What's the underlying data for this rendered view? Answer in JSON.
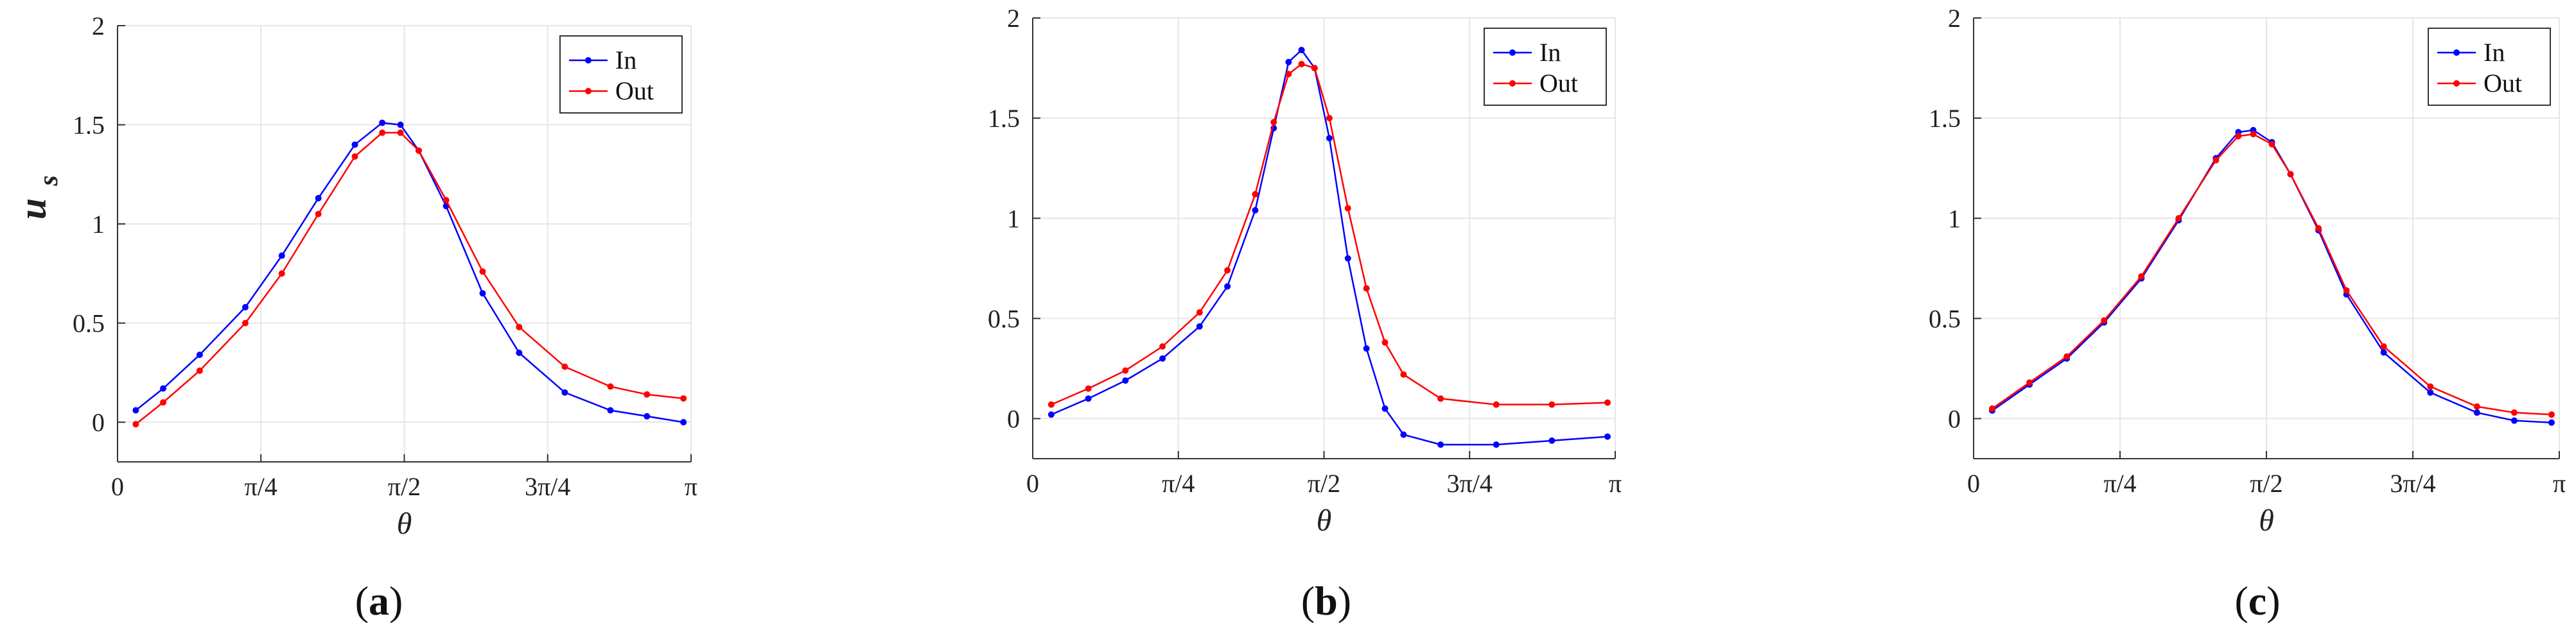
{
  "chart_data": [
    {
      "type": "line",
      "panel_label": "a",
      "panel_label_open": "(",
      "panel_label_close": ")",
      "xlabel": "θ",
      "ylabel": "u",
      "ylabel_sub": "s",
      "xlim": [
        0,
        3.14159
      ],
      "ylim": [
        -0.2,
        2
      ],
      "xticks": [
        0,
        0.7854,
        1.5708,
        2.3562,
        3.14159
      ],
      "xtick_labels": [
        "0",
        "π/4",
        "π/2",
        "3π/4",
        "π"
      ],
      "yticks": [
        0,
        0.5,
        1,
        1.5,
        2
      ],
      "ytick_labels": [
        "0",
        "0.5",
        "1",
        "1.5",
        "2"
      ],
      "legend_position": "top-right",
      "series": [
        {
          "name": "In",
          "color": "#0000ff",
          "points": [
            [
              0.1,
              0.06
            ],
            [
              0.25,
              0.17
            ],
            [
              0.45,
              0.34
            ],
            [
              0.7,
              0.58
            ],
            [
              0.9,
              0.84
            ],
            [
              1.1,
              1.13
            ],
            [
              1.3,
              1.4
            ],
            [
              1.45,
              1.51
            ],
            [
              1.55,
              1.5
            ],
            [
              1.65,
              1.37
            ],
            [
              1.8,
              1.09
            ],
            [
              2.0,
              0.65
            ],
            [
              2.2,
              0.35
            ],
            [
              2.45,
              0.15
            ],
            [
              2.7,
              0.06
            ],
            [
              2.9,
              0.03
            ],
            [
              3.1,
              0.0
            ]
          ]
        },
        {
          "name": "Out",
          "color": "#ff0000",
          "points": [
            [
              0.1,
              -0.01
            ],
            [
              0.25,
              0.1
            ],
            [
              0.45,
              0.26
            ],
            [
              0.7,
              0.5
            ],
            [
              0.9,
              0.75
            ],
            [
              1.1,
              1.05
            ],
            [
              1.3,
              1.34
            ],
            [
              1.45,
              1.46
            ],
            [
              1.55,
              1.46
            ],
            [
              1.65,
              1.37
            ],
            [
              1.8,
              1.12
            ],
            [
              2.0,
              0.76
            ],
            [
              2.2,
              0.48
            ],
            [
              2.45,
              0.28
            ],
            [
              2.7,
              0.18
            ],
            [
              2.9,
              0.14
            ],
            [
              3.1,
              0.12
            ]
          ]
        }
      ]
    },
    {
      "type": "line",
      "panel_label": "b",
      "panel_label_open": "(",
      "panel_label_close": ")",
      "xlabel": "θ",
      "ylabel": "",
      "ylabel_sub": "",
      "xlim": [
        0,
        3.14159
      ],
      "ylim": [
        -0.2,
        2
      ],
      "xticks": [
        0,
        0.7854,
        1.5708,
        2.3562,
        3.14159
      ],
      "xtick_labels": [
        "0",
        "π/4",
        "π/2",
        "3π/4",
        "π"
      ],
      "yticks": [
        0,
        0.5,
        1,
        1.5,
        2
      ],
      "ytick_labels": [
        "0",
        "0.5",
        "1",
        "1.5",
        "2"
      ],
      "legend_position": "top-right",
      "series": [
        {
          "name": "In",
          "color": "#0000ff",
          "points": [
            [
              0.1,
              0.02
            ],
            [
              0.3,
              0.1
            ],
            [
              0.5,
              0.19
            ],
            [
              0.7,
              0.3
            ],
            [
              0.9,
              0.46
            ],
            [
              1.05,
              0.66
            ],
            [
              1.2,
              1.04
            ],
            [
              1.3,
              1.45
            ],
            [
              1.38,
              1.78
            ],
            [
              1.45,
              1.84
            ],
            [
              1.52,
              1.75
            ],
            [
              1.6,
              1.4
            ],
            [
              1.7,
              0.8
            ],
            [
              1.8,
              0.35
            ],
            [
              1.9,
              0.05
            ],
            [
              2.0,
              -0.08
            ],
            [
              2.2,
              -0.13
            ],
            [
              2.5,
              -0.13
            ],
            [
              2.8,
              -0.11
            ],
            [
              3.1,
              -0.09
            ]
          ]
        },
        {
          "name": "Out",
          "color": "#ff0000",
          "points": [
            [
              0.1,
              0.07
            ],
            [
              0.3,
              0.15
            ],
            [
              0.5,
              0.24
            ],
            [
              0.7,
              0.36
            ],
            [
              0.9,
              0.53
            ],
            [
              1.05,
              0.74
            ],
            [
              1.2,
              1.12
            ],
            [
              1.3,
              1.48
            ],
            [
              1.38,
              1.72
            ],
            [
              1.45,
              1.77
            ],
            [
              1.52,
              1.75
            ],
            [
              1.6,
              1.5
            ],
            [
              1.7,
              1.05
            ],
            [
              1.8,
              0.65
            ],
            [
              1.9,
              0.38
            ],
            [
              2.0,
              0.22
            ],
            [
              2.2,
              0.1
            ],
            [
              2.5,
              0.07
            ],
            [
              2.8,
              0.07
            ],
            [
              3.1,
              0.08
            ]
          ]
        }
      ]
    },
    {
      "type": "line",
      "panel_label": "c",
      "panel_label_open": "(",
      "panel_label_close": ")",
      "xlabel": "θ",
      "ylabel": "",
      "ylabel_sub": "",
      "xlim": [
        0,
        3.14159
      ],
      "ylim": [
        -0.2,
        2
      ],
      "xticks": [
        0,
        0.7854,
        1.5708,
        2.3562,
        3.14159
      ],
      "xtick_labels": [
        "0",
        "π/4",
        "π/2",
        "3π/4",
        "π"
      ],
      "yticks": [
        0,
        0.5,
        1,
        1.5,
        2
      ],
      "ytick_labels": [
        "0",
        "0.5",
        "1",
        "1.5",
        "2"
      ],
      "legend_position": "top-right",
      "series": [
        {
          "name": "In",
          "color": "#0000ff",
          "points": [
            [
              0.1,
              0.04
            ],
            [
              0.3,
              0.17
            ],
            [
              0.5,
              0.3
            ],
            [
              0.7,
              0.48
            ],
            [
              0.9,
              0.7
            ],
            [
              1.1,
              0.99
            ],
            [
              1.3,
              1.3
            ],
            [
              1.42,
              1.43
            ],
            [
              1.5,
              1.44
            ],
            [
              1.6,
              1.38
            ],
            [
              1.7,
              1.22
            ],
            [
              1.85,
              0.94
            ],
            [
              2.0,
              0.62
            ],
            [
              2.2,
              0.33
            ],
            [
              2.45,
              0.13
            ],
            [
              2.7,
              0.03
            ],
            [
              2.9,
              -0.01
            ],
            [
              3.1,
              -0.02
            ]
          ]
        },
        {
          "name": "Out",
          "color": "#ff0000",
          "points": [
            [
              0.1,
              0.05
            ],
            [
              0.3,
              0.18
            ],
            [
              0.5,
              0.31
            ],
            [
              0.7,
              0.49
            ],
            [
              0.9,
              0.71
            ],
            [
              1.1,
              1.0
            ],
            [
              1.3,
              1.29
            ],
            [
              1.42,
              1.41
            ],
            [
              1.5,
              1.42
            ],
            [
              1.6,
              1.37
            ],
            [
              1.7,
              1.22
            ],
            [
              1.85,
              0.95
            ],
            [
              2.0,
              0.64
            ],
            [
              2.2,
              0.36
            ],
            [
              2.45,
              0.16
            ],
            [
              2.7,
              0.06
            ],
            [
              2.9,
              0.03
            ],
            [
              3.1,
              0.02
            ]
          ]
        }
      ]
    }
  ]
}
